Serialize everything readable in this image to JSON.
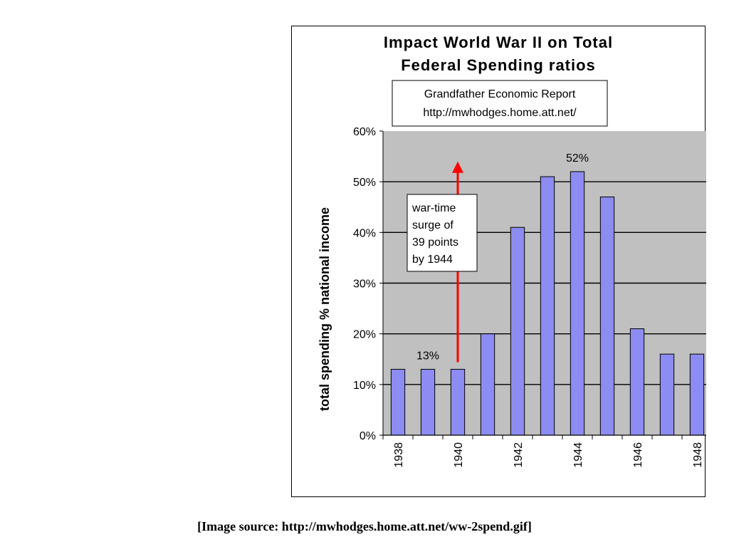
{
  "chart_data": {
    "type": "bar",
    "title": [
      "Impact World War II on Total",
      "Federal Spending ratios"
    ],
    "source_box": [
      "Grandfather Economic Report",
      "http://mwhodges.home.att.net/"
    ],
    "ylabel": "total spending % national income",
    "ylim": [
      0,
      0.6
    ],
    "yticks": [
      0,
      0.1,
      0.2,
      0.3,
      0.4,
      0.5,
      0.6
    ],
    "ytick_labels": [
      "0%",
      "10%",
      "20%",
      "30%",
      "40%",
      "50%",
      "60%"
    ],
    "categories": [
      "1938",
      "1939",
      "1940",
      "1941",
      "1942",
      "1943",
      "1944",
      "1945",
      "1946",
      "1947",
      "1948"
    ],
    "xtick_labels_shown": [
      "1938",
      "1940",
      "1942",
      "1944",
      "1946",
      "1948"
    ],
    "values": [
      0.13,
      0.13,
      0.13,
      0.2,
      0.41,
      0.51,
      0.52,
      0.47,
      0.21,
      0.16,
      0.16
    ],
    "bar_color": "#8c8cf2",
    "plot_background": "#c0c0c0",
    "grid": true,
    "data_labels": [
      {
        "category": "1939",
        "text": "13%"
      },
      {
        "category": "1944",
        "text": "52%"
      }
    ],
    "annotation": {
      "lines": [
        "war-time",
        "surge of",
        "39 points",
        "by 1944"
      ],
      "arrow_color": "#ff0000",
      "arrow_category": "1940",
      "arrow_from_value": 0.13,
      "arrow_to_value": 0.54
    }
  },
  "caption": "[Image source:  http://mwhodges.home.att.net/ww-2spend.gif]"
}
